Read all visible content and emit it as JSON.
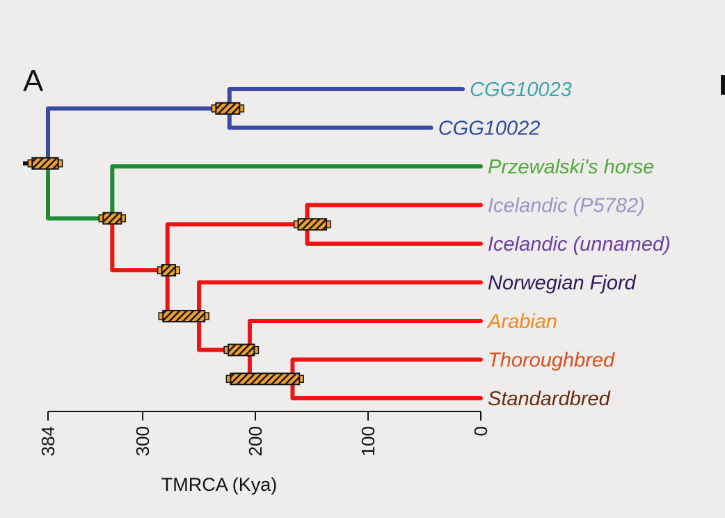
{
  "panel_label": "A",
  "axis": {
    "title": "TMRCA (Kya)",
    "ticks": [
      384,
      300,
      200,
      100,
      0
    ],
    "range": [
      384,
      0
    ]
  },
  "colors": {
    "blue": "#3b4ba1",
    "green": "#1f8b34",
    "red": "#ee1414",
    "bar_fill": "#f0a030",
    "root_stem": "#111111",
    "background": "#eeedeb"
  },
  "tips": [
    {
      "name": "CGG10023",
      "age": 16,
      "color": "#3aa5b2",
      "branch": "blue"
    },
    {
      "name": "CGG10022",
      "age": 44,
      "color": "#2c4aa0",
      "branch": "blue"
    },
    {
      "name": "Przewalski's horse",
      "age": 0,
      "color": "#4fa83c",
      "branch": "green"
    },
    {
      "name": "Icelandic (P5782)",
      "age": 0,
      "color": "#9b93c9",
      "branch": "red"
    },
    {
      "name": "Icelandic (unnamed)",
      "age": 0,
      "color": "#6b3fa0",
      "branch": "red"
    },
    {
      "name": "Norwegian Fjord",
      "age": 0,
      "color": "#2b1a5c",
      "branch": "red"
    },
    {
      "name": "Arabian",
      "age": 0,
      "color": "#f08a1e",
      "branch": "red"
    },
    {
      "name": "Thoroughbred",
      "age": 0,
      "color": "#d4501c",
      "branch": "red"
    },
    {
      "name": "Standardbred",
      "age": 0,
      "color": "#6b2a10",
      "branch": "red"
    }
  ],
  "nodes": [
    {
      "id": "root",
      "age": 384,
      "ci": [
        375,
        398
      ],
      "children": [
        "cgg",
        "n_prz"
      ],
      "branch": "blue"
    },
    {
      "id": "cgg",
      "age": 223,
      "ci": [
        214,
        235
      ],
      "children": [
        0,
        1
      ],
      "branch": "blue"
    },
    {
      "id": "n_prz",
      "age": 327,
      "ci": [
        319,
        335
      ],
      "children": [
        2,
        "n_dom"
      ],
      "branch": "green"
    },
    {
      "id": "n_dom",
      "age": 278,
      "ci": [
        271,
        283
      ],
      "children": [
        "n_ice",
        "n_nf"
      ],
      "branch": "red"
    },
    {
      "id": "n_ice",
      "age": 154,
      "ci": [
        137,
        162
      ],
      "children": [
        3,
        4
      ],
      "branch": "red"
    },
    {
      "id": "n_nf",
      "age": 250,
      "ci": [
        245,
        282
      ],
      "children": [
        5,
        "n_ar"
      ],
      "branch": "red"
    },
    {
      "id": "n_ar",
      "age": 205,
      "ci": [
        201,
        224
      ],
      "children": [
        6,
        "n_tb"
      ],
      "branch": "red"
    },
    {
      "id": "n_tb",
      "age": 167,
      "ci": [
        161,
        222
      ],
      "children": [
        7,
        8
      ],
      "branch": "red"
    }
  ]
}
